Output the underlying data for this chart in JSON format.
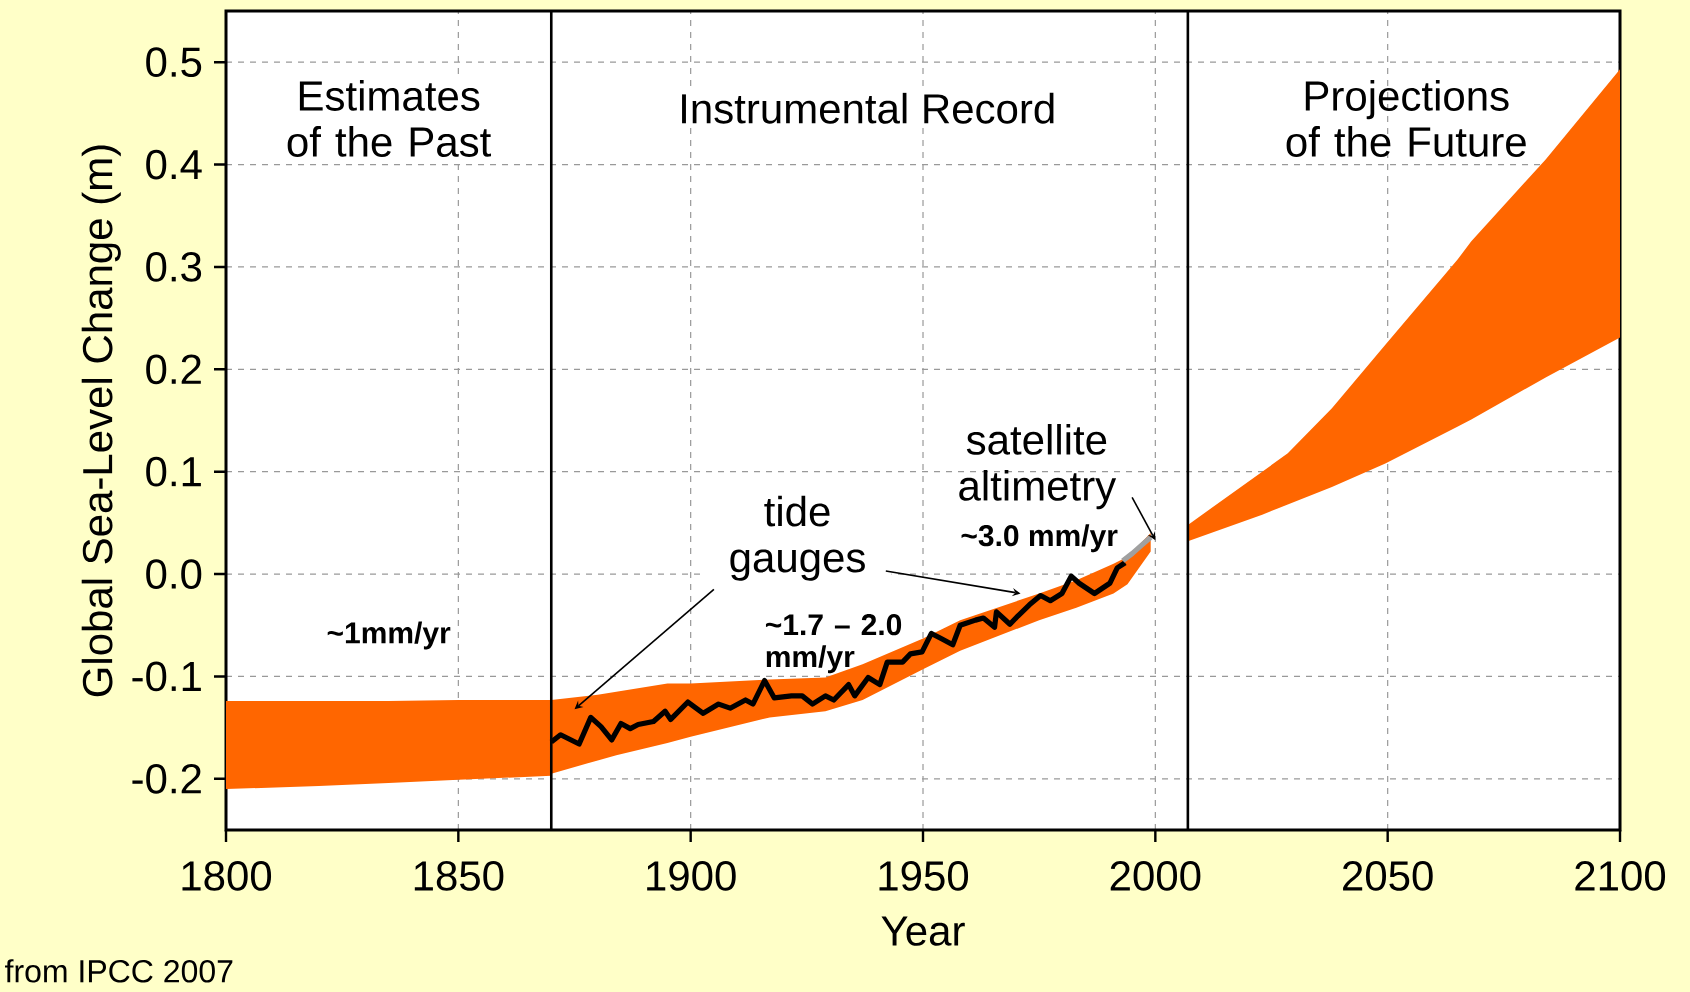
{
  "chart_data": {
    "type": "line",
    "xlabel": "Year",
    "ylabel": "Global Sea-Level Change (m)",
    "xlim": [
      1800,
      2100
    ],
    "ylim": [
      -0.25,
      0.55
    ],
    "xticks": [
      1800,
      1850,
      1900,
      1950,
      2000,
      2050,
      2100
    ],
    "yticks": [
      {
        "value": -0.2,
        "label": "-0.2"
      },
      {
        "value": -0.1,
        "label": "-0.1"
      },
      {
        "value": 0.0,
        "label": "0.0"
      },
      {
        "value": 0.1,
        "label": "0.1"
      },
      {
        "value": 0.2,
        "label": "0.2"
      },
      {
        "value": 0.3,
        "label": "0.3"
      },
      {
        "value": 0.4,
        "label": "0.4"
      },
      {
        "value": 0.5,
        "label": "0.5"
      }
    ],
    "grid": true,
    "series": [
      {
        "type": "line",
        "color": "#ff6600",
        "x": [
          1800,
          1820,
          1835,
          1850,
          1870
        ],
        "values": [
          null,
          null,
          null,
          null,
          null
        ],
        "upper": [
          -0.124,
          -0.124,
          -0.124,
          -0.123,
          -0.123
        ],
        "lower": [
          -0.21,
          -0.207,
          -0.204,
          -0.201,
          -0.197
        ]
      },
      {
        "type": "line",
        "color": "#ff6600",
        "x": [
          1870,
          1880,
          1884,
          1895,
          1900,
          1917,
          1929,
          1937,
          1950,
          1958,
          1975,
          1983,
          1991,
          1994,
          1999
        ],
        "values": [
          null,
          null,
          null,
          null,
          null,
          null,
          null,
          null,
          null,
          null,
          null,
          null,
          null,
          null,
          null
        ],
        "upper": [
          -0.123,
          -0.118,
          -0.115,
          -0.107,
          -0.107,
          -0.103,
          -0.101,
          -0.088,
          -0.063,
          -0.045,
          -0.019,
          -0.006,
          0.01,
          0.017,
          0.04
        ],
        "lower": [
          -0.195,
          -0.182,
          -0.177,
          -0.165,
          -0.159,
          -0.14,
          -0.134,
          -0.123,
          -0.093,
          -0.075,
          -0.045,
          -0.033,
          -0.019,
          -0.01,
          0.022
        ]
      },
      {
        "type": "line",
        "color": "#ff6600",
        "x": [
          2007,
          2023,
          2028.5,
          2038,
          2049.5,
          2065,
          2068,
          2084,
          2100
        ],
        "values": [
          null,
          null,
          null,
          null,
          null,
          null,
          null,
          null,
          null
        ],
        "upper": [
          0.048,
          0.1,
          0.118,
          0.162,
          0.224,
          0.307,
          0.325,
          0.405,
          0.493
        ],
        "lower": [
          0.032,
          0.058,
          0.068,
          0.085,
          0.108,
          0.144,
          0.151,
          0.192,
          0.231
        ]
      },
      {
        "color": "#000000",
        "x": [
          1870,
          1872,
          1876,
          1878.5,
          1880.7,
          1883,
          1885,
          1887,
          1888.7,
          1892,
          1894.5,
          1895.7,
          1899.4,
          1902.7,
          1906,
          1908.5,
          1911.8,
          1913.4,
          1915.9,
          1918,
          1921.7,
          1924,
          1926.2,
          1929,
          1930.8,
          1934,
          1935.3,
          1938.2,
          1940.7,
          1942.3,
          1945.6,
          1947.3,
          1949.8,
          1951.8,
          1953.9,
          1956.4,
          1958,
          1961.3,
          1963,
          1965.4,
          1965.8,
          1968.7,
          1970.4,
          1972.9,
          1975.3,
          1977.4,
          1979.9,
          1981.9,
          1983.6,
          1986.9,
          1990.2,
          1991.8,
          1993.5
        ],
        "values": [
          -0.164,
          -0.157,
          -0.166,
          -0.14,
          -0.149,
          -0.162,
          -0.146,
          -0.151,
          -0.147,
          -0.144,
          -0.134,
          -0.142,
          -0.125,
          -0.136,
          -0.127,
          -0.131,
          -0.123,
          -0.127,
          -0.104,
          -0.121,
          -0.119,
          -0.119,
          -0.127,
          -0.119,
          -0.123,
          -0.108,
          -0.119,
          -0.101,
          -0.108,
          -0.086,
          -0.086,
          -0.078,
          -0.076,
          -0.058,
          -0.063,
          -0.069,
          -0.05,
          -0.045,
          -0.043,
          -0.052,
          -0.037,
          -0.049,
          -0.041,
          -0.03,
          -0.021,
          -0.026,
          -0.019,
          -0.002,
          -0.009,
          -0.019,
          -0.009,
          0.006,
          0.011
        ]
      },
      {
        "color": "#a0a0a0",
        "x": [
          1993,
          1995,
          1997,
          1999
        ],
        "values": [
          0.013,
          0.02,
          0.028,
          0.036
        ]
      }
    ],
    "ref_lines": [
      {
        "axis": "x",
        "value": 1870,
        "color": "#000000"
      },
      {
        "axis": "x",
        "value": 2007,
        "color": "#000000"
      }
    ],
    "annotations": [
      "Estimates of the Past",
      "Instrumental Record",
      "Projections of the Future",
      "~1mm/yr",
      "tide gauges",
      "~1.7 – 2.0 mm/yr",
      {
        "text": "satellite altimetry",
        "x": 2000,
        "y": 0.033
      },
      "~3.0 mm/yr",
      "from IPCC 2007"
    ]
  }
}
